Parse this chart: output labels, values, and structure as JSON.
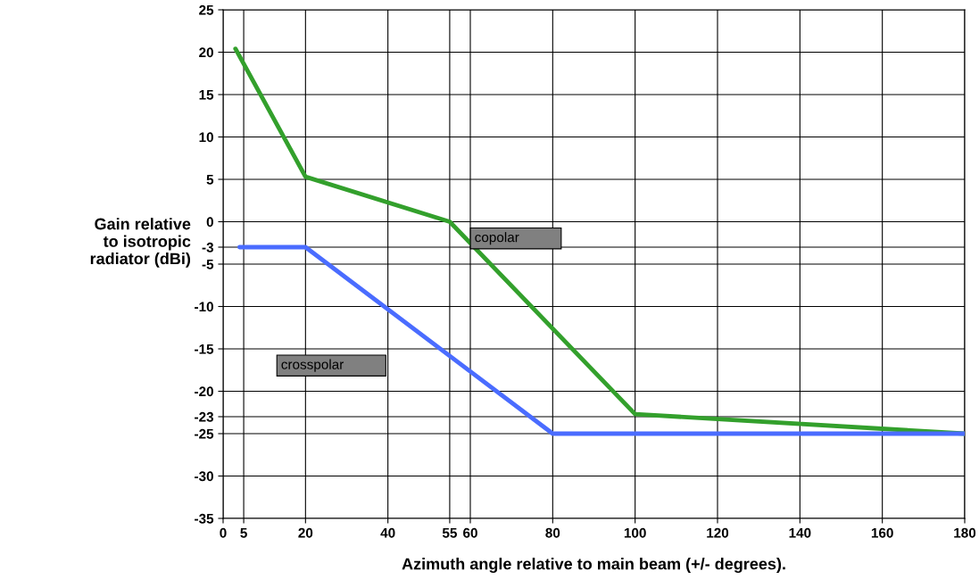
{
  "chart_data": {
    "type": "line",
    "xlabel": "Azimuth angle relative to main beam (+/- degrees).",
    "ylabel": "Gain relative\n to isotropic\nradiator (dBi)",
    "series": [
      {
        "color": "#33a02c",
        "x": [
          3,
          20,
          55,
          100,
          180
        ],
        "values": [
          20.4,
          5.3,
          0,
          -22.7,
          -25
        ]
      },
      {
        "color": "#4a6cff",
        "x": [
          4,
          20,
          80,
          180
        ],
        "values": [
          -3,
          -3,
          -25,
          -25
        ]
      }
    ],
    "annotations": [
      "copolar",
      "crosspolar"
    ],
    "xlim": [
      0,
      180
    ],
    "ylim": [
      -35,
      25
    ],
    "xticks": [
      0,
      5,
      20,
      40,
      55,
      60,
      80,
      100,
      120,
      140,
      160,
      180
    ],
    "yticks": [
      -35,
      -30,
      -25,
      -23,
      -20,
      -15,
      -10,
      -5,
      -3,
      0,
      5,
      10,
      15,
      20,
      25
    ],
    "grid": true,
    "legend": false,
    "marker": "none",
    "line_style": "solid"
  }
}
